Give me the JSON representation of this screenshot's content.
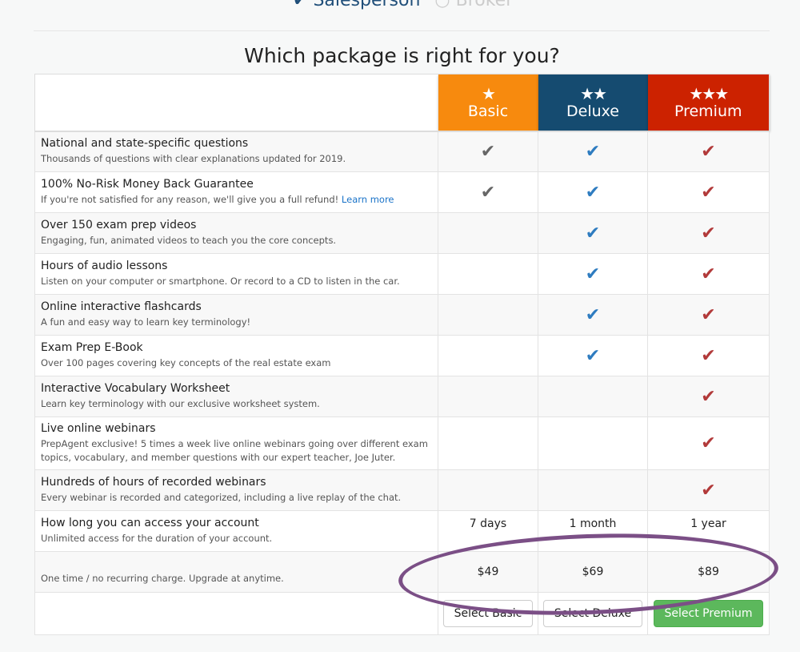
{
  "license_type": {
    "options": [
      {
        "label": "Salesperson",
        "selected": true
      },
      {
        "label": "Broker",
        "selected": false
      }
    ]
  },
  "title": "Which package is right for you?",
  "packages": [
    {
      "name": "Basic",
      "stars": "★",
      "color": "#f78a0e",
      "check_color": "#666666",
      "access": "7 days",
      "price": "$49",
      "button": "Select Basic"
    },
    {
      "name": "Deluxe",
      "stars": "★★",
      "color": "#154b70",
      "check_color": "#2e7cc0",
      "access": "1 month",
      "price": "$69",
      "button": "Select Deluxe"
    },
    {
      "name": "Premium",
      "stars": "★★★",
      "color": "#cc2200",
      "check_color": "#b23a3a",
      "access": "1 year",
      "price": "$89",
      "button": "Select Premium"
    }
  ],
  "features": [
    {
      "title": "National and state-specific questions",
      "desc": "Thousands of questions with clear explanations updated for 2019.",
      "included": [
        true,
        true,
        true
      ]
    },
    {
      "title": "100% No-Risk Money Back Guarantee",
      "desc": "If you're not satisfied for any reason, we'll give you a full refund!",
      "link": "Learn more",
      "included": [
        true,
        true,
        true
      ]
    },
    {
      "title": "Over 150 exam prep videos",
      "desc": "Engaging, fun, animated videos to teach you the core concepts.",
      "included": [
        false,
        true,
        true
      ]
    },
    {
      "title": "Hours of audio lessons",
      "desc": "Listen on your computer or smartphone. Or record to a CD to listen in the car.",
      "included": [
        false,
        true,
        true
      ]
    },
    {
      "title": "Online interactive flashcards",
      "desc": "A fun and easy way to learn key terminology!",
      "included": [
        false,
        true,
        true
      ]
    },
    {
      "title": "Exam Prep E-Book",
      "desc": "Over 100 pages covering key concepts of the real estate exam",
      "included": [
        false,
        true,
        true
      ]
    },
    {
      "title": "Interactive Vocabulary Worksheet",
      "desc": "Learn key terminology with our exclusive worksheet system.",
      "included": [
        false,
        false,
        true
      ]
    },
    {
      "title": "Live online webinars",
      "desc": "PrepAgent exclusive! 5 times a week live online webinars going over different exam topics, vocabulary, and member questions with our expert teacher, Joe Juter.",
      "included": [
        false,
        false,
        true
      ]
    },
    {
      "title": "Hundreds of hours of recorded webinars",
      "desc": "Every webinar is recorded and categorized, including a live replay of the chat.",
      "included": [
        false,
        false,
        true
      ]
    }
  ],
  "access_row": {
    "title": "How long you can access your account",
    "desc": "Unlimited access for the duration of your account."
  },
  "price_row": {
    "desc": "One time / no recurring charge. Upgrade at anytime."
  },
  "annotation_color": "#7b4f86"
}
